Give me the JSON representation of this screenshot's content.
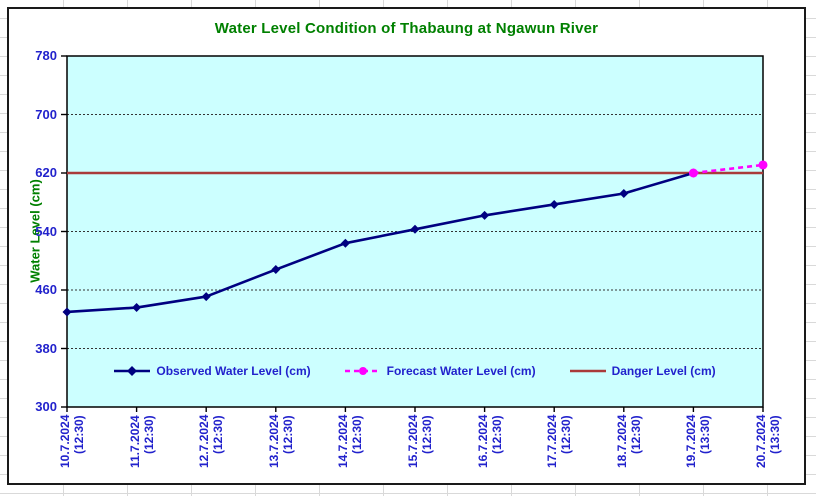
{
  "chart_data": {
    "type": "line",
    "title": "Water Level Condition of Thabaung at Ngawun River",
    "ylabel": "Water Level (cm)",
    "ylim": [
      300,
      780
    ],
    "yticks": [
      300,
      380,
      460,
      540,
      620,
      700,
      780
    ],
    "grid": "horizontal-dashed",
    "legend_position": "bottom-inside",
    "categories": [
      {
        "date": "10.7.2024",
        "time": "(12:30)"
      },
      {
        "date": "11.7.2024",
        "time": "(12:30)"
      },
      {
        "date": "12.7.2024",
        "time": "(12:30)"
      },
      {
        "date": "13.7.2024",
        "time": "(12:30)"
      },
      {
        "date": "14.7.2024",
        "time": "(12:30)"
      },
      {
        "date": "15.7.2024",
        "time": "(12:30)"
      },
      {
        "date": "16.7.2024",
        "time": "(12:30)"
      },
      {
        "date": "17.7.2024",
        "time": "(12:30)"
      },
      {
        "date": "18.7.2024",
        "time": "(12:30)"
      },
      {
        "date": "19.7.2024",
        "time": "(13:30)"
      },
      {
        "date": "20.7.2024",
        "time": "(13:30)"
      }
    ],
    "series": [
      {
        "name": "Observed Water Level (cm)",
        "line_style": "solid",
        "marker": "diamond",
        "color": "#000080",
        "values": [
          430,
          436,
          451,
          488,
          524,
          543,
          562,
          577,
          592,
          620,
          null
        ]
      },
      {
        "name": "Forecast Water Level (cm)",
        "line_style": "dashed",
        "marker": "circle",
        "color": "#FF00FF",
        "values": [
          null,
          null,
          null,
          null,
          null,
          null,
          null,
          null,
          null,
          620,
          631
        ]
      },
      {
        "name": "Danger Level (cm)",
        "line_style": "solid",
        "marker": "none",
        "color": "#A93B3B",
        "value": 620
      }
    ],
    "colors": {
      "plot_background": "#CCFFFF",
      "title": "#008000",
      "axis_title": "#008000",
      "tick_labels": "#2222CC",
      "legend_text": "#2222CC",
      "sheet_gridlines": "#D9D9D9",
      "chart_border": "#000000",
      "plot_gridlines": "#333333"
    }
  }
}
